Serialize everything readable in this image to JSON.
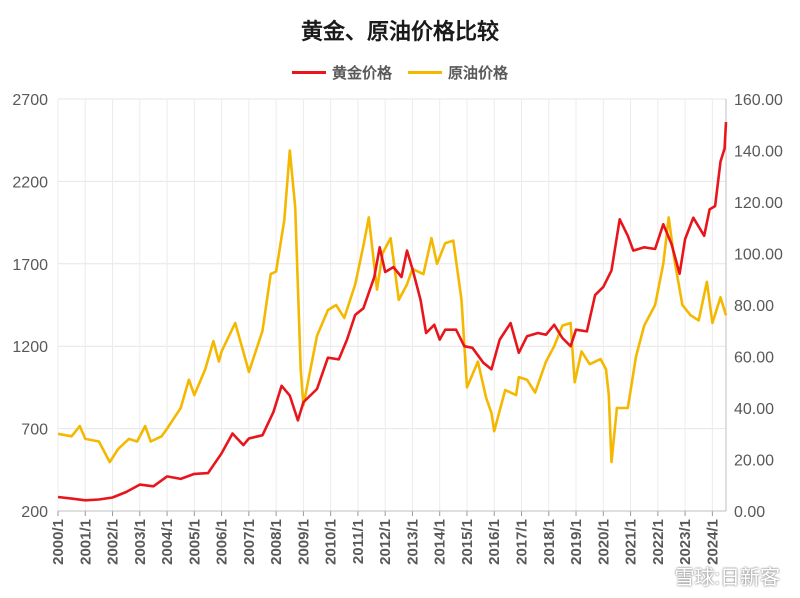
{
  "chart_data": {
    "type": "line",
    "title": "黄金、原油价格比较",
    "y_left": {
      "ticks": [
        "2700",
        "2200",
        "1700",
        "1200",
        "700",
        "200"
      ],
      "range": [
        200,
        2700
      ]
    },
    "y_right": {
      "ticks": [
        "160.00",
        "140.00",
        "120.00",
        "100.00",
        "80.00",
        "60.00",
        "40.00",
        "20.00",
        "0.00"
      ],
      "range": [
        0,
        160
      ]
    },
    "x_ticks": [
      "2000/1",
      "2001/1",
      "2002/1",
      "2003/1",
      "2004/1",
      "2005/1",
      "2006/1",
      "2007/1",
      "2008/1",
      "2009/1",
      "2010/1",
      "2011/1",
      "2012/1",
      "2013/1",
      "2014/1",
      "2015/1",
      "2016/1",
      "2017/1",
      "2018/1",
      "2019/1",
      "2020/1",
      "2021/1",
      "2022/1",
      "2023/1",
      "2024/1"
    ],
    "x_range": [
      2000.0,
      2024.5
    ],
    "grid": true,
    "legend_position": "top",
    "series": [
      {
        "name": "黄金价格",
        "axis": "left",
        "color": "#e8161c",
        "points": [
          [
            2000.0,
            285
          ],
          [
            2000.5,
            275
          ],
          [
            2001.0,
            265
          ],
          [
            2001.5,
            270
          ],
          [
            2002.0,
            282
          ],
          [
            2002.5,
            315
          ],
          [
            2003.0,
            360
          ],
          [
            2003.5,
            350
          ],
          [
            2004.0,
            410
          ],
          [
            2004.5,
            395
          ],
          [
            2005.0,
            425
          ],
          [
            2005.5,
            430
          ],
          [
            2006.0,
            550
          ],
          [
            2006.4,
            670
          ],
          [
            2006.8,
            600
          ],
          [
            2007.0,
            640
          ],
          [
            2007.5,
            660
          ],
          [
            2007.9,
            800
          ],
          [
            2008.2,
            960
          ],
          [
            2008.5,
            900
          ],
          [
            2008.8,
            750
          ],
          [
            2009.0,
            860
          ],
          [
            2009.5,
            940
          ],
          [
            2009.9,
            1130
          ],
          [
            2010.3,
            1120
          ],
          [
            2010.6,
            1240
          ],
          [
            2010.9,
            1390
          ],
          [
            2011.2,
            1430
          ],
          [
            2011.6,
            1620
          ],
          [
            2011.8,
            1800
          ],
          [
            2012.0,
            1650
          ],
          [
            2012.3,
            1680
          ],
          [
            2012.6,
            1620
          ],
          [
            2012.8,
            1780
          ],
          [
            2013.0,
            1670
          ],
          [
            2013.3,
            1480
          ],
          [
            2013.5,
            1280
          ],
          [
            2013.8,
            1330
          ],
          [
            2014.0,
            1240
          ],
          [
            2014.2,
            1300
          ],
          [
            2014.6,
            1300
          ],
          [
            2014.9,
            1200
          ],
          [
            2015.2,
            1190
          ],
          [
            2015.6,
            1100
          ],
          [
            2015.9,
            1060
          ],
          [
            2016.2,
            1240
          ],
          [
            2016.6,
            1340
          ],
          [
            2016.9,
            1160
          ],
          [
            2017.2,
            1260
          ],
          [
            2017.6,
            1280
          ],
          [
            2017.9,
            1270
          ],
          [
            2018.2,
            1330
          ],
          [
            2018.5,
            1250
          ],
          [
            2018.8,
            1200
          ],
          [
            2019.0,
            1300
          ],
          [
            2019.4,
            1290
          ],
          [
            2019.7,
            1510
          ],
          [
            2020.0,
            1560
          ],
          [
            2020.3,
            1660
          ],
          [
            2020.6,
            1970
          ],
          [
            2020.9,
            1870
          ],
          [
            2021.1,
            1780
          ],
          [
            2021.5,
            1800
          ],
          [
            2021.9,
            1790
          ],
          [
            2022.2,
            1940
          ],
          [
            2022.5,
            1820
          ],
          [
            2022.8,
            1640
          ],
          [
            2023.0,
            1850
          ],
          [
            2023.3,
            1980
          ],
          [
            2023.7,
            1870
          ],
          [
            2023.9,
            2030
          ],
          [
            2024.1,
            2050
          ],
          [
            2024.3,
            2320
          ],
          [
            2024.45,
            2400
          ],
          [
            2024.5,
            2560
          ]
        ]
      },
      {
        "name": "原油价格",
        "axis": "right",
        "color": "#f5b800",
        "points": [
          [
            2000.0,
            30
          ],
          [
            2000.5,
            29
          ],
          [
            2000.8,
            33
          ],
          [
            2001.0,
            28
          ],
          [
            2001.5,
            27
          ],
          [
            2001.9,
            19
          ],
          [
            2002.2,
            24
          ],
          [
            2002.6,
            28
          ],
          [
            2002.9,
            27
          ],
          [
            2003.2,
            33
          ],
          [
            2003.4,
            27
          ],
          [
            2003.8,
            29
          ],
          [
            2004.0,
            32
          ],
          [
            2004.5,
            40
          ],
          [
            2004.8,
            51
          ],
          [
            2005.0,
            45
          ],
          [
            2005.4,
            55
          ],
          [
            2005.7,
            66
          ],
          [
            2005.9,
            58
          ],
          [
            2006.0,
            62
          ],
          [
            2006.5,
            73
          ],
          [
            2006.9,
            58
          ],
          [
            2007.0,
            54
          ],
          [
            2007.5,
            70
          ],
          [
            2007.8,
            92
          ],
          [
            2008.0,
            93
          ],
          [
            2008.3,
            113
          ],
          [
            2008.5,
            140
          ],
          [
            2008.7,
            118
          ],
          [
            2008.9,
            55
          ],
          [
            2009.0,
            41
          ],
          [
            2009.5,
            68
          ],
          [
            2009.9,
            78
          ],
          [
            2010.2,
            80
          ],
          [
            2010.5,
            75
          ],
          [
            2010.9,
            88
          ],
          [
            2011.2,
            103
          ],
          [
            2011.4,
            114
          ],
          [
            2011.7,
            86
          ],
          [
            2011.9,
            100
          ],
          [
            2012.2,
            106
          ],
          [
            2012.5,
            82
          ],
          [
            2012.8,
            88
          ],
          [
            2013.0,
            94
          ],
          [
            2013.4,
            92
          ],
          [
            2013.7,
            106
          ],
          [
            2013.9,
            96
          ],
          [
            2014.2,
            104
          ],
          [
            2014.5,
            105
          ],
          [
            2014.8,
            82
          ],
          [
            2015.0,
            48
          ],
          [
            2015.4,
            58
          ],
          [
            2015.7,
            44
          ],
          [
            2015.9,
            38
          ],
          [
            2016.0,
            31
          ],
          [
            2016.4,
            47
          ],
          [
            2016.8,
            45
          ],
          [
            2016.9,
            52
          ],
          [
            2017.2,
            51
          ],
          [
            2017.5,
            46
          ],
          [
            2017.9,
            58
          ],
          [
            2018.2,
            64
          ],
          [
            2018.5,
            72
          ],
          [
            2018.8,
            73
          ],
          [
            2018.95,
            50
          ],
          [
            2019.2,
            62
          ],
          [
            2019.5,
            57
          ],
          [
            2019.9,
            59
          ],
          [
            2020.1,
            55
          ],
          [
            2020.2,
            45
          ],
          [
            2020.3,
            19
          ],
          [
            2020.5,
            40
          ],
          [
            2020.9,
            40
          ],
          [
            2021.2,
            60
          ],
          [
            2021.5,
            72
          ],
          [
            2021.9,
            80
          ],
          [
            2022.2,
            96
          ],
          [
            2022.4,
            114
          ],
          [
            2022.6,
            98
          ],
          [
            2022.9,
            80
          ],
          [
            2023.2,
            76
          ],
          [
            2023.5,
            74
          ],
          [
            2023.8,
            89
          ],
          [
            2024.0,
            73
          ],
          [
            2024.3,
            83
          ],
          [
            2024.5,
            76
          ]
        ]
      }
    ],
    "watermark": "雪球:日新客"
  }
}
